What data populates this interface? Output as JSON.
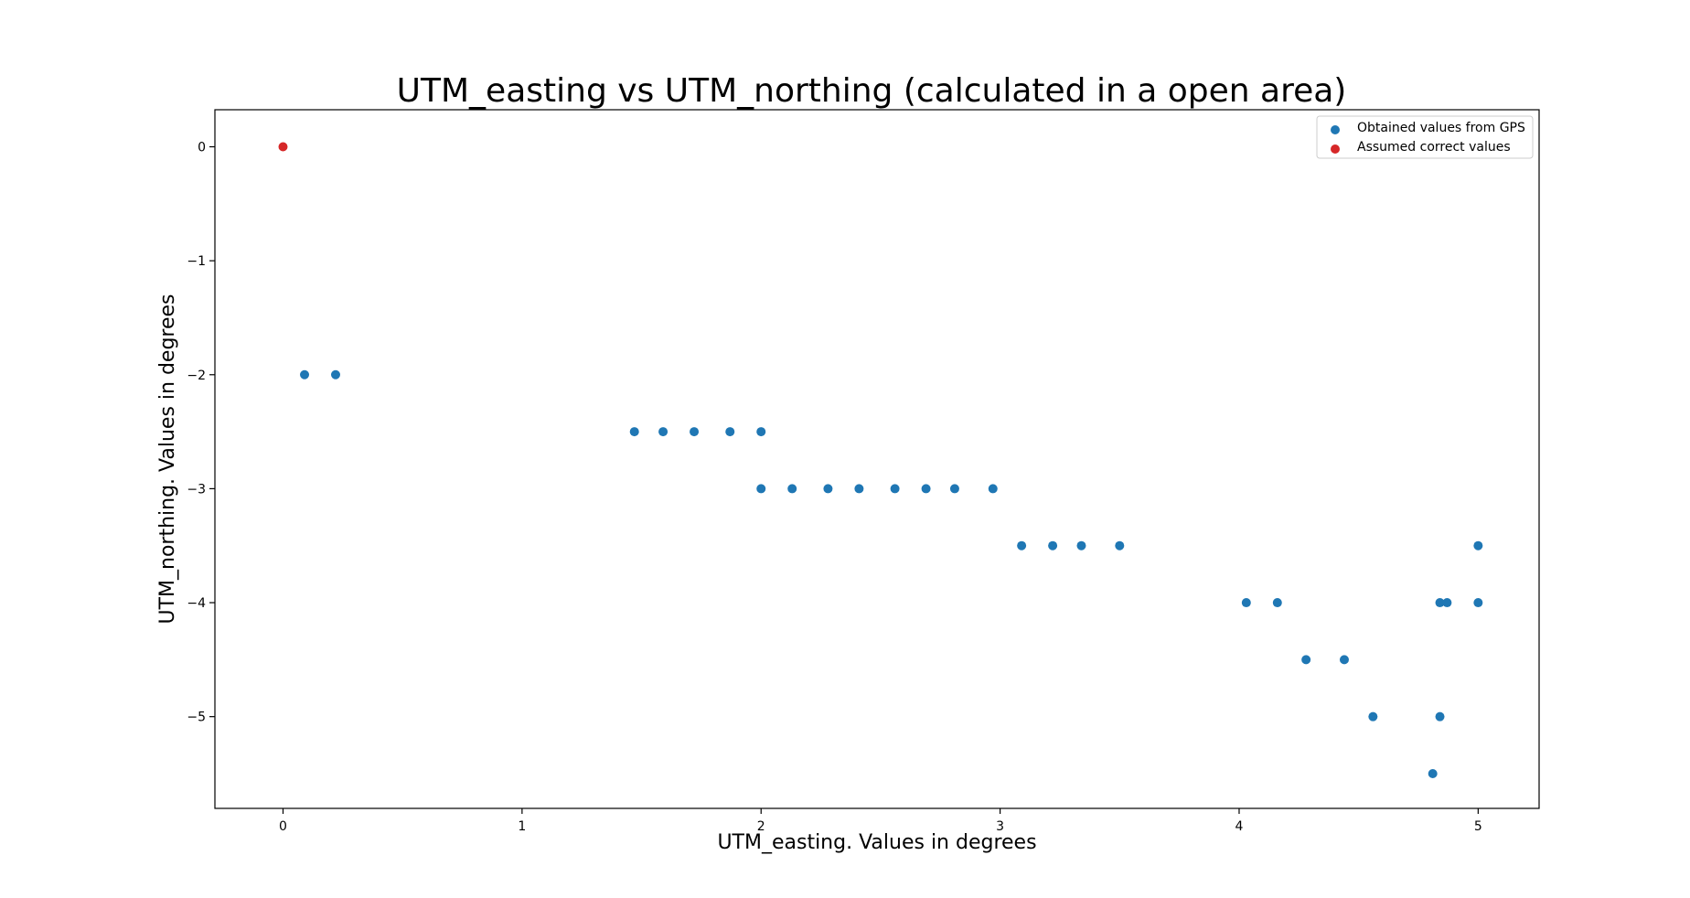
{
  "chart_data": {
    "type": "scatter",
    "title": "UTM_easting vs UTM_northing (calculated in a open area)",
    "xlabel": "UTM_easting. Values in degrees",
    "ylabel": "UTM_northing. Values in degrees",
    "xlim": [
      -0.285,
      5.255
    ],
    "ylim": [
      -5.805,
      0.325
    ],
    "xticks": [
      0,
      1,
      2,
      3,
      4,
      5
    ],
    "yticks": [
      0,
      -1,
      -2,
      -3,
      -4,
      -5
    ],
    "xtick_labels": [
      "0",
      "1",
      "2",
      "3",
      "4",
      "5"
    ],
    "ytick_labels": [
      "0",
      "−1",
      "−2",
      "−3",
      "−4",
      "−5"
    ],
    "grid": false,
    "legend_position": "top-right",
    "series": [
      {
        "name": "Obtained values from GPS",
        "color": "#1f77b4",
        "x": [
          0.09,
          0.22,
          1.47,
          1.59,
          1.72,
          1.87,
          2.0,
          2.0,
          2.13,
          2.28,
          2.41,
          2.56,
          2.69,
          2.81,
          2.97,
          3.09,
          3.22,
          3.34,
          3.5,
          4.03,
          4.16,
          4.28,
          4.44,
          4.56,
          4.81,
          4.84,
          4.84,
          4.87,
          5.0,
          5.0
        ],
        "y": [
          -2.0,
          -2.0,
          -2.5,
          -2.5,
          -2.5,
          -2.5,
          -2.5,
          -3.0,
          -3.0,
          -3.0,
          -3.0,
          -3.0,
          -3.0,
          -3.0,
          -3.0,
          -3.5,
          -3.5,
          -3.5,
          -3.5,
          -4.0,
          -4.0,
          -4.5,
          -4.5,
          -5.0,
          -5.5,
          -4.0,
          -5.0,
          -4.0,
          -4.0,
          -3.5
        ]
      },
      {
        "name": "Assumed correct values",
        "color": "#d62728",
        "x": [
          0.0
        ],
        "y": [
          0.0
        ]
      }
    ]
  }
}
